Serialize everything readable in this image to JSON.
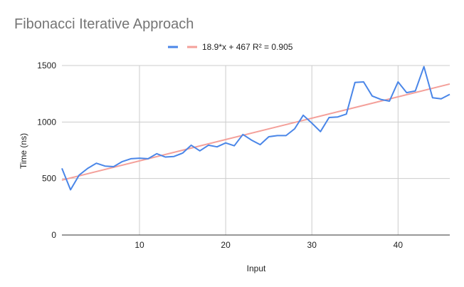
{
  "chart_data": {
    "type": "line",
    "title": "Fibonacci Iterative Approach",
    "xlabel": "Input",
    "ylabel": "Time (ns)",
    "xlim": [
      1,
      46
    ],
    "ylim": [
      0,
      1500
    ],
    "x_ticks": [
      10,
      20,
      30,
      40
    ],
    "y_ticks": [
      0,
      500,
      1000,
      1500
    ],
    "grid": true,
    "legend_position": "top-center",
    "series": [
      {
        "color": "#4a86e8",
        "x": [
          1,
          2,
          3,
          4,
          5,
          6,
          7,
          8,
          9,
          10,
          11,
          12,
          13,
          14,
          15,
          16,
          17,
          18,
          19,
          20,
          21,
          22,
          23,
          24,
          25,
          26,
          27,
          28,
          29,
          30,
          31,
          32,
          33,
          34,
          35,
          36,
          37,
          38,
          39,
          40,
          41,
          42,
          43,
          44,
          45,
          46
        ],
        "values": [
          590,
          400,
          530,
          590,
          635,
          610,
          605,
          650,
          675,
          680,
          675,
          720,
          690,
          695,
          725,
          795,
          745,
          795,
          780,
          815,
          790,
          890,
          840,
          800,
          870,
          880,
          880,
          940,
          1060,
          990,
          915,
          1040,
          1045,
          1070,
          1350,
          1355,
          1230,
          1200,
          1185,
          1355,
          1260,
          1275,
          1490,
          1215,
          1205,
          1245
        ]
      },
      {
        "name": "18.9*x + 467 R² = 0.905",
        "color": "#f4a09a",
        "type": "trendline",
        "slope": 18.9,
        "intercept": 467
      }
    ]
  }
}
